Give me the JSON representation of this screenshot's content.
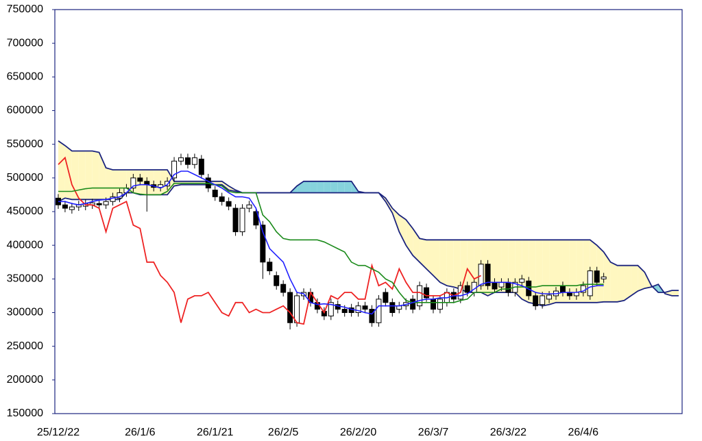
{
  "chart_data": {
    "type": "candlestick",
    "categories": [
      "25/12/22",
      null,
      null,
      null,
      null,
      null,
      null,
      null,
      null,
      null,
      null,
      null,
      "26/1/6",
      null,
      null,
      null,
      null,
      null,
      null,
      null,
      null,
      null,
      null,
      "26/1/21",
      null,
      null,
      null,
      null,
      null,
      null,
      null,
      null,
      null,
      "26/2/5",
      null,
      null,
      null,
      null,
      null,
      null,
      null,
      null,
      null,
      null,
      "26/2/20",
      null,
      null,
      null,
      null,
      null,
      null,
      null,
      null,
      null,
      null,
      "26/3/7",
      null,
      null,
      null,
      null,
      null,
      null,
      null,
      null,
      null,
      null,
      "26/3/22",
      null,
      null,
      null,
      null,
      null,
      null,
      null,
      null,
      null,
      null,
      "26/4/6",
      null,
      null,
      null,
      null,
      null,
      null,
      null,
      null,
      null,
      null,
      null,
      null,
      null,
      null
    ],
    "open": [
      470000,
      460000,
      453000,
      457000,
      458000,
      460000,
      462000,
      460000,
      465000,
      470000,
      478000,
      485000,
      500000,
      495000,
      490000,
      486000,
      488000,
      500000,
      525000,
      530000,
      520000,
      528000,
      500000,
      482000,
      472000,
      465000,
      455000,
      420000,
      455000,
      450000,
      430000,
      375000,
      355000,
      342000,
      330000,
      285000,
      325000,
      330000,
      315000,
      302000,
      295000,
      312000,
      305000,
      307000,
      300000,
      310000,
      305000,
      285000,
      330000,
      315000,
      305000,
      310000,
      320000,
      310000,
      337000,
      320000,
      305000,
      315000,
      330000,
      320000,
      340000,
      330000,
      340000,
      372000,
      345000,
      338000,
      345000,
      330000,
      345000,
      347000,
      325000,
      312000,
      320000,
      325000,
      340000,
      330000,
      325000,
      330000,
      325000,
      362000,
      350000,
      null,
      null,
      null,
      null,
      null,
      null,
      null,
      null,
      null,
      null,
      null
    ],
    "high": [
      476000,
      466000,
      463000,
      466000,
      468000,
      469000,
      468000,
      471000,
      478000,
      484000,
      491000,
      506000,
      506000,
      501000,
      496000,
      496000,
      501000,
      531000,
      536000,
      536000,
      536000,
      534000,
      506000,
      488000,
      478000,
      471000,
      461000,
      461000,
      466000,
      456000,
      436000,
      381000,
      361000,
      348000,
      336000,
      331000,
      336000,
      336000,
      321000,
      308000,
      321000,
      318000,
      311000,
      313000,
      316000,
      316000,
      311000,
      326000,
      336000,
      321000,
      316000,
      321000,
      326000,
      346000,
      343000,
      326000,
      326000,
      336000,
      336000,
      346000,
      346000,
      351000,
      378000,
      378000,
      351000,
      351000,
      351000,
      351000,
      356000,
      353000,
      331000,
      331000,
      332000,
      338000,
      346000,
      336000,
      336000,
      346000,
      368000,
      368000,
      359000,
      null,
      null,
      null,
      null,
      null,
      null,
      null,
      null,
      null,
      null,
      null
    ],
    "low": [
      454000,
      449000,
      447000,
      451000,
      452000,
      454000,
      454000,
      454000,
      459000,
      464000,
      472000,
      479000,
      489000,
      450000,
      480000,
      480000,
      482000,
      494000,
      519000,
      514000,
      514000,
      499000,
      479000,
      466000,
      459000,
      452000,
      414000,
      414000,
      449000,
      424000,
      350000,
      356000,
      334000,
      324000,
      275000,
      279000,
      319000,
      309000,
      299000,
      289000,
      289000,
      299000,
      294000,
      294000,
      294000,
      299000,
      279000,
      279000,
      309000,
      294000,
      299000,
      304000,
      299000,
      304000,
      316000,
      299000,
      299000,
      309000,
      314000,
      314000,
      324000,
      324000,
      334000,
      334000,
      329000,
      332000,
      324000,
      324000,
      339000,
      319000,
      304000,
      306000,
      314000,
      319000,
      324000,
      319000,
      319000,
      324000,
      319000,
      339000,
      344000,
      null,
      null,
      null,
      null,
      null,
      null,
      null,
      null,
      null,
      null,
      null
    ],
    "close": [
      460000,
      455000,
      457000,
      460000,
      462000,
      463000,
      460000,
      465000,
      472000,
      478000,
      485000,
      500000,
      495000,
      490000,
      486000,
      490000,
      495000,
      525000,
      530000,
      520000,
      530000,
      505000,
      485000,
      472000,
      465000,
      458000,
      420000,
      455000,
      460000,
      430000,
      375000,
      362000,
      340000,
      330000,
      285000,
      325000,
      330000,
      315000,
      305000,
      295000,
      315000,
      305000,
      300000,
      300000,
      310000,
      305000,
      285000,
      320000,
      315000,
      300000,
      310000,
      315000,
      305000,
      340000,
      322000,
      305000,
      320000,
      330000,
      320000,
      340000,
      330000,
      345000,
      372000,
      340000,
      335000,
      345000,
      330000,
      345000,
      350000,
      325000,
      310000,
      325000,
      326000,
      332000,
      330000,
      325000,
      330000,
      340000,
      362000,
      345000,
      353000,
      null,
      null,
      null,
      null,
      null,
      null,
      null,
      null,
      null,
      null,
      null
    ],
    "up_color": "#ffffff",
    "down_color": "#000000",
    "series": [
      {
        "color": "#1f1fff",
        "values": [
          465000,
          465000,
          462000,
          460000,
          462000,
          465000,
          467000,
          468000,
          470000,
          472000,
          478000,
          488000,
          490000,
          490000,
          488000,
          485000,
          490000,
          505000,
          510000,
          510000,
          505000,
          500000,
          495000,
          490000,
          485000,
          478000,
          472000,
          472000,
          470000,
          455000,
          420000,
          395000,
          385000,
          375000,
          350000,
          330000,
          328000,
          315000,
          312000,
          313000,
          312000,
          310000,
          308000,
          305000,
          303000,
          300000,
          298000,
          310000,
          310000,
          310000,
          310000,
          312000,
          315000,
          318000,
          320000,
          320000,
          322000,
          322000,
          325000,
          325000,
          328000,
          335000,
          342000,
          345000,
          345000,
          345000,
          345000,
          343000,
          340000,
          335000,
          330000,
          328000,
          328000,
          328000,
          330000,
          330000,
          330000,
          332000,
          338000,
          340000,
          340000,
          null,
          null,
          null,
          null,
          null,
          null,
          null,
          null,
          null,
          null,
          null
        ]
      },
      {
        "color": "#1a8a1a",
        "values": [
          480000,
          480000,
          480000,
          482000,
          484000,
          485000,
          485000,
          485000,
          485000,
          485000,
          485000,
          478000,
          476000,
          475000,
          475000,
          475000,
          480000,
          492000,
          492000,
          492000,
          492000,
          492000,
          492000,
          490000,
          488000,
          480000,
          478000,
          478000,
          478000,
          478000,
          445000,
          435000,
          420000,
          410000,
          408000,
          408000,
          408000,
          408000,
          408000,
          405000,
          400000,
          395000,
          390000,
          375000,
          370000,
          370000,
          365000,
          360000,
          350000,
          345000,
          330000,
          318000,
          315000,
          315000,
          315000,
          315000,
          315000,
          315000,
          315000,
          318000,
          320000,
          330000,
          330000,
          330000,
          330000,
          335000,
          335000,
          338000,
          338000,
          338000,
          338000,
          340000,
          340000,
          340000,
          340000,
          340000,
          340000,
          342000,
          342000,
          342000,
          342000,
          null,
          null,
          null,
          null,
          null,
          null,
          null,
          null,
          null,
          null,
          null
        ]
      },
      {
        "color": "#ee2222",
        "values": [
          520000,
          530000,
          490000,
          470000,
          460000,
          460000,
          455000,
          420000,
          455000,
          460000,
          465000,
          430000,
          425000,
          375000,
          375000,
          355000,
          345000,
          330000,
          285000,
          320000,
          325000,
          325000,
          330000,
          315000,
          300000,
          295000,
          315000,
          315000,
          300000,
          305000,
          300000,
          300000,
          305000,
          310000,
          300000,
          285000,
          283000,
          330000,
          315000,
          300000,
          325000,
          320000,
          330000,
          330000,
          320000,
          320000,
          370000,
          340000,
          345000,
          335000,
          365000,
          345000,
          330000,
          330000,
          325000,
          325000,
          325000,
          330000,
          325000,
          330000,
          365000,
          350000,
          355000,
          null,
          null,
          null,
          null,
          null,
          null,
          null,
          null,
          null,
          null,
          null,
          null,
          null,
          null,
          null,
          null,
          null,
          null,
          null,
          null,
          null,
          null,
          null,
          null,
          null,
          null,
          null,
          null,
          null
        ]
      },
      {
        "color": "#1a237e",
        "values": [
          465000,
          470000,
          468000,
          468000,
          468000,
          468000,
          468000,
          468000,
          468000,
          468000,
          478000,
          478000,
          475000,
          475000,
          475000,
          475000,
          475000,
          488000,
          490000,
          490000,
          490000,
          490000,
          490000,
          490000,
          490000,
          482000,
          480000,
          478000,
          478000,
          478000,
          478000,
          478000,
          478000,
          478000,
          478000,
          488000,
          495000,
          495000,
          495000,
          495000,
          495000,
          495000,
          495000,
          495000,
          480000,
          478000,
          478000,
          478000,
          465000,
          448000,
          420000,
          400000,
          385000,
          375000,
          365000,
          355000,
          345000,
          340000,
          338000,
          335000,
          330000,
          330000,
          330000,
          325000,
          330000,
          330000,
          330000,
          330000,
          320000,
          315000,
          313000,
          310000,
          312000,
          315000,
          315000,
          315000,
          315000,
          315000,
          315000,
          315000,
          316000,
          316000,
          316000,
          318000,
          325000,
          332000,
          336000,
          338000,
          342000,
          328000,
          325000,
          325000
        ]
      },
      {
        "color": "#1a237e",
        "values": [
          555000,
          548000,
          540000,
          540000,
          540000,
          540000,
          538000,
          515000,
          512000,
          512000,
          512000,
          512000,
          512000,
          512000,
          512000,
          512000,
          512000,
          495000,
          495000,
          495000,
          495000,
          495000,
          495000,
          495000,
          495000,
          488000,
          482000,
          478000,
          478000,
          478000,
          478000,
          478000,
          478000,
          478000,
          478000,
          478000,
          478000,
          478000,
          478000,
          478000,
          478000,
          478000,
          478000,
          478000,
          478000,
          478000,
          478000,
          478000,
          470000,
          455000,
          445000,
          438000,
          425000,
          410000,
          408000,
          408000,
          408000,
          408000,
          408000,
          408000,
          408000,
          408000,
          408000,
          408000,
          408000,
          408000,
          408000,
          408000,
          408000,
          408000,
          408000,
          408000,
          408000,
          408000,
          408000,
          408000,
          408000,
          408000,
          408000,
          400000,
          390000,
          375000,
          370000,
          370000,
          370000,
          370000,
          360000,
          340000,
          330000,
          330000,
          333000,
          333000
        ]
      }
    ],
    "cloud_colors": [
      "#fff7c0",
      "#86d2dc"
    ],
    "frame_color": "#1a237e",
    "ylim": [
      150000,
      750000
    ],
    "yticks": [
      150000,
      200000,
      250000,
      300000,
      350000,
      400000,
      450000,
      500000,
      550000,
      600000,
      650000,
      700000,
      750000
    ]
  }
}
